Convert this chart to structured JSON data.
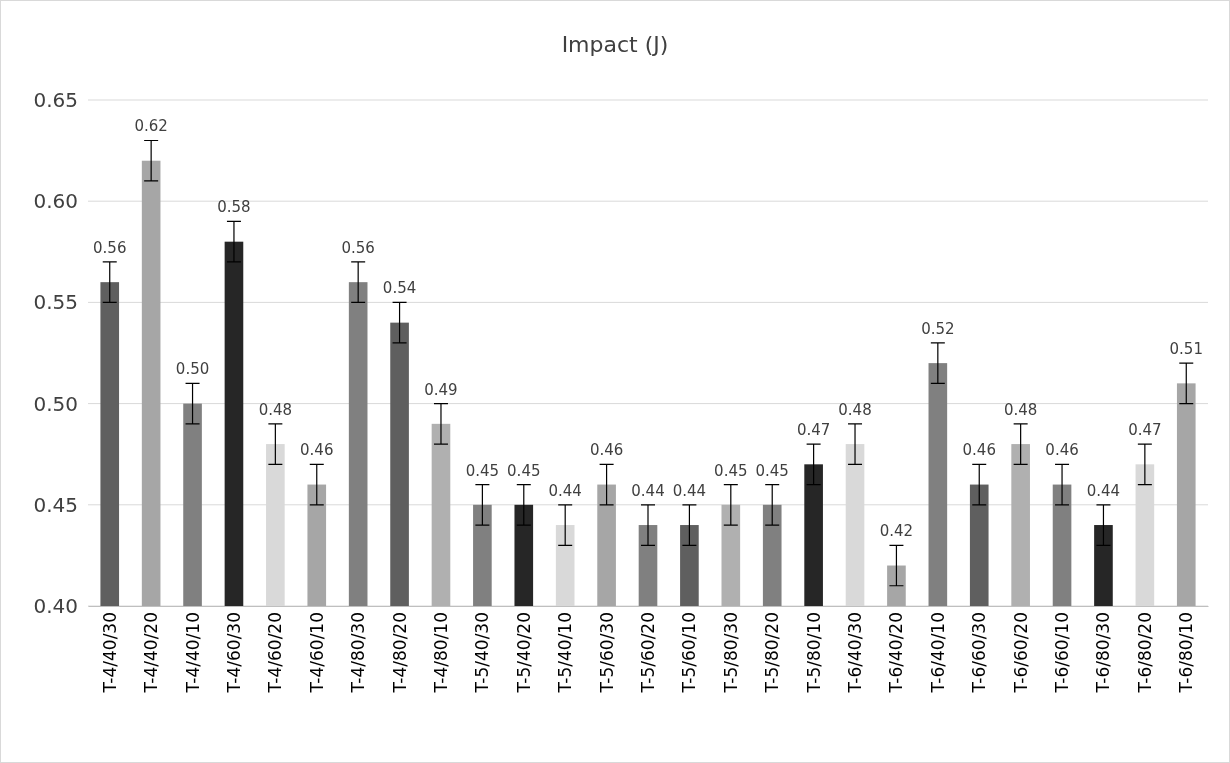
{
  "chart_data": {
    "type": "bar",
    "title": "Impact (J)",
    "categories": [
      "T-4/40/30",
      "T-4/40/20",
      "T-4/40/10",
      "T-4/60/30",
      "T-4/60/20",
      "T-4/60/10",
      "T-4/80/30",
      "T-4/80/20",
      "T-4/80/10",
      "T-5/40/30",
      "T-5/40/20",
      "T-5/40/10",
      "T-5/60/30",
      "T-5/60/20",
      "T-5/60/10",
      "T-5/80/30",
      "T-5/80/20",
      "T-5/80/10",
      "T-6/40/30",
      "T-6/40/20",
      "T-6/40/10",
      "T-6/60/30",
      "T-6/60/20",
      "T-6/60/10",
      "T-6/80/30",
      "T-6/80/20",
      "T-6/80/10"
    ],
    "values": [
      0.56,
      0.62,
      0.5,
      0.58,
      0.48,
      0.46,
      0.56,
      0.54,
      0.49,
      0.45,
      0.45,
      0.44,
      0.46,
      0.44,
      0.44,
      0.45,
      0.45,
      0.47,
      0.48,
      0.42,
      0.52,
      0.46,
      0.48,
      0.46,
      0.44,
      0.47,
      0.51
    ],
    "value_labels": [
      "0.56",
      "0.62",
      "0.50",
      "0.58",
      "0.48",
      "0.46",
      "0.56",
      "0.54",
      "0.49",
      "0.45",
      "0.45",
      "0.44",
      "0.46",
      "0.44",
      "0.44",
      "0.45",
      "0.45",
      "0.47",
      "0.48",
      "0.42",
      "0.52",
      "0.46",
      "0.48",
      "0.46",
      "0.44",
      "0.47",
      "0.51"
    ],
    "errors": [
      0.01,
      0.01,
      0.01,
      0.01,
      0.01,
      0.01,
      0.01,
      0.01,
      0.01,
      0.01,
      0.01,
      0.01,
      0.01,
      0.01,
      0.01,
      0.01,
      0.01,
      0.01,
      0.01,
      0.01,
      0.01,
      0.01,
      0.01,
      0.01,
      0.01,
      0.01,
      0.01
    ],
    "colors": [
      "#5f5f5f",
      "#a6a6a6",
      "#808080",
      "#262626",
      "#d9d9d9",
      "#a6a6a6",
      "#808080",
      "#5f5f5f",
      "#b0b0b0",
      "#808080",
      "#262626",
      "#d9d9d9",
      "#a6a6a6",
      "#808080",
      "#5f5f5f",
      "#b0b0b0",
      "#808080",
      "#262626",
      "#d9d9d9",
      "#a6a6a6",
      "#808080",
      "#5f5f5f",
      "#b0b0b0",
      "#808080",
      "#262626",
      "#d9d9d9",
      "#a6a6a6"
    ],
    "ylim": [
      0.4,
      0.65
    ],
    "yticks": [
      {
        "value": 0.4,
        "label": "0.40"
      },
      {
        "value": 0.45,
        "label": "0.45"
      },
      {
        "value": 0.5,
        "label": "0.50"
      },
      {
        "value": 0.55,
        "label": "0.55"
      },
      {
        "value": 0.6,
        "label": "0.60"
      },
      {
        "value": 0.65,
        "label": "0.65"
      }
    ],
    "grid": "y"
  }
}
